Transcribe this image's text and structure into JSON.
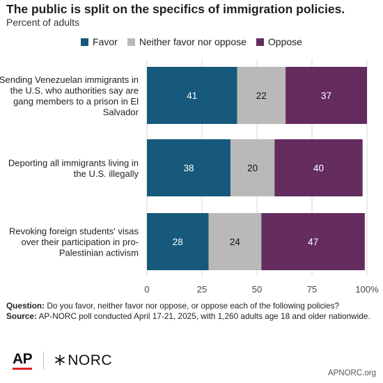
{
  "title": "The public is split on the specifics of immigration policies.",
  "subtitle": "Percent of adults",
  "legend": [
    {
      "label": "Favor",
      "color": "#16597a"
    },
    {
      "label": "Neither favor nor oppose",
      "color": "#b9b9b9"
    },
    {
      "label": "Oppose",
      "color": "#642c5f"
    }
  ],
  "chart_data": {
    "type": "bar",
    "orientation": "horizontal",
    "stacked": true,
    "categories": [
      "Sending Venezuelan immigrants in the U.S. who authorities say are gang members to a prison in El Salvador",
      "Deporting all immigrants living in the U.S. illegally",
      "Revoking foreign students' visas over their participation in pro-Palestinian activism"
    ],
    "series": [
      {
        "name": "Favor",
        "values": [
          41,
          38,
          28
        ],
        "color": "#16597a"
      },
      {
        "name": "Neither favor nor oppose",
        "values": [
          22,
          20,
          24
        ],
        "color": "#b9b9b9"
      },
      {
        "name": "Oppose",
        "values": [
          37,
          40,
          47
        ],
        "color": "#642c5f"
      }
    ],
    "xlim": [
      0,
      100
    ],
    "xticks": [
      "0",
      "25",
      "50",
      "75",
      "100%"
    ],
    "grid": true,
    "legend_position": "top"
  },
  "footer": {
    "question_label": "Question:",
    "question": "Do you favor, neither favor nor oppose, or oppose each of the following policies?",
    "source_label": "Source:",
    "source": "AP-NORC poll conducted April 17-21, 2025, with 1,260 adults age 18 and older nationwide."
  },
  "logos": {
    "ap": "AP",
    "norc": "NORC"
  },
  "site": "APNORC.org"
}
